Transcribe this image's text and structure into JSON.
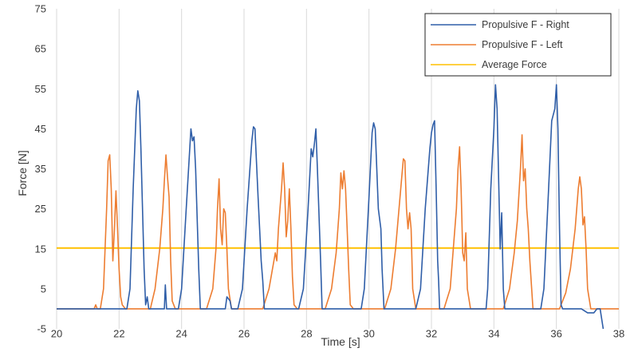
{
  "chart_data": {
    "type": "line",
    "title": "",
    "xlabel": "Time [s]",
    "ylabel": "Force [N]",
    "xlim": [
      20,
      38
    ],
    "ylim": [
      -5,
      75
    ],
    "xticks": [
      20,
      22,
      24,
      26,
      28,
      30,
      32,
      34,
      36,
      38
    ],
    "yticks": [
      -5,
      5,
      15,
      25,
      35,
      45,
      55,
      65,
      75
    ],
    "grid": "vertical",
    "legend": "top-right",
    "series": [
      {
        "name": "Propulsive F - Right",
        "color": "#2f5ea8",
        "points": [
          [
            20.0,
            0
          ],
          [
            22.25,
            0
          ],
          [
            22.35,
            5
          ],
          [
            22.45,
            30
          ],
          [
            22.55,
            50
          ],
          [
            22.6,
            54.5
          ],
          [
            22.65,
            52
          ],
          [
            22.7,
            40
          ],
          [
            22.8,
            10
          ],
          [
            22.85,
            1
          ],
          [
            22.9,
            3
          ],
          [
            22.95,
            0
          ],
          [
            23.45,
            0
          ],
          [
            23.48,
            6
          ],
          [
            23.52,
            0
          ],
          [
            23.9,
            0
          ],
          [
            24.0,
            5
          ],
          [
            24.15,
            25
          ],
          [
            24.3,
            45
          ],
          [
            24.35,
            42
          ],
          [
            24.4,
            43
          ],
          [
            24.45,
            35
          ],
          [
            24.55,
            10
          ],
          [
            24.6,
            0
          ],
          [
            25.4,
            0
          ],
          [
            25.45,
            3
          ],
          [
            25.55,
            2
          ],
          [
            25.6,
            0
          ],
          [
            25.8,
            0
          ],
          [
            25.95,
            5
          ],
          [
            26.1,
            25
          ],
          [
            26.25,
            42
          ],
          [
            26.3,
            45.5
          ],
          [
            26.35,
            45
          ],
          [
            26.45,
            28
          ],
          [
            26.55,
            12
          ],
          [
            26.6,
            7
          ],
          [
            26.65,
            0
          ],
          [
            27.75,
            0
          ],
          [
            27.9,
            5
          ],
          [
            28.05,
            25
          ],
          [
            28.15,
            40
          ],
          [
            28.2,
            38
          ],
          [
            28.25,
            41
          ],
          [
            28.3,
            45
          ],
          [
            28.35,
            35
          ],
          [
            28.45,
            12
          ],
          [
            28.5,
            0
          ],
          [
            29.75,
            0
          ],
          [
            29.85,
            5
          ],
          [
            30.0,
            28
          ],
          [
            30.1,
            44
          ],
          [
            30.15,
            46.5
          ],
          [
            30.2,
            45
          ],
          [
            30.3,
            25
          ],
          [
            30.38,
            20
          ],
          [
            30.42,
            10
          ],
          [
            30.48,
            0
          ],
          [
            31.5,
            0
          ],
          [
            31.65,
            5
          ],
          [
            31.8,
            25
          ],
          [
            31.95,
            40
          ],
          [
            32.0,
            44
          ],
          [
            32.05,
            46
          ],
          [
            32.1,
            47
          ],
          [
            32.15,
            30
          ],
          [
            32.2,
            12
          ],
          [
            32.23,
            7
          ],
          [
            32.26,
            0
          ],
          [
            33.75,
            0
          ],
          [
            33.8,
            5
          ],
          [
            33.9,
            30
          ],
          [
            34.0,
            45
          ],
          [
            34.05,
            56
          ],
          [
            34.1,
            50
          ],
          [
            34.2,
            15
          ],
          [
            34.25,
            24
          ],
          [
            34.3,
            5
          ],
          [
            34.35,
            0
          ],
          [
            35.5,
            0
          ],
          [
            35.6,
            5
          ],
          [
            35.75,
            30
          ],
          [
            35.85,
            47
          ],
          [
            35.95,
            50
          ],
          [
            36.0,
            56
          ],
          [
            36.05,
            45
          ],
          [
            36.1,
            20
          ],
          [
            36.15,
            1
          ],
          [
            36.2,
            0
          ],
          [
            36.8,
            0
          ],
          [
            37.0,
            -1
          ],
          [
            37.2,
            -1
          ],
          [
            37.3,
            0
          ],
          [
            37.4,
            0
          ],
          [
            37.5,
            -5
          ]
        ]
      },
      {
        "name": "Propulsive F - Left",
        "color": "#ed7d31",
        "points": [
          [
            20.0,
            0
          ],
          [
            21.2,
            0
          ],
          [
            21.25,
            1
          ],
          [
            21.3,
            0
          ],
          [
            21.4,
            0
          ],
          [
            21.5,
            5
          ],
          [
            21.6,
            25
          ],
          [
            21.65,
            37
          ],
          [
            21.7,
            38.5
          ],
          [
            21.75,
            30
          ],
          [
            21.8,
            12
          ],
          [
            21.85,
            20
          ],
          [
            21.9,
            29.5
          ],
          [
            21.95,
            20
          ],
          [
            22.0,
            10
          ],
          [
            22.05,
            3
          ],
          [
            22.1,
            1
          ],
          [
            22.2,
            0
          ],
          [
            23.0,
            0
          ],
          [
            23.15,
            5
          ],
          [
            23.3,
            15
          ],
          [
            23.4,
            25
          ],
          [
            23.45,
            32
          ],
          [
            23.5,
            38.5
          ],
          [
            23.55,
            33
          ],
          [
            23.6,
            28
          ],
          [
            23.65,
            12
          ],
          [
            23.7,
            2
          ],
          [
            23.8,
            0
          ],
          [
            24.8,
            0
          ],
          [
            25.0,
            5
          ],
          [
            25.1,
            15
          ],
          [
            25.15,
            25
          ],
          [
            25.2,
            32.5
          ],
          [
            25.25,
            20
          ],
          [
            25.3,
            16
          ],
          [
            25.35,
            25
          ],
          [
            25.4,
            24
          ],
          [
            25.45,
            15
          ],
          [
            25.5,
            5
          ],
          [
            25.6,
            0
          ],
          [
            26.6,
            0
          ],
          [
            26.8,
            5
          ],
          [
            27.0,
            14
          ],
          [
            27.05,
            12
          ],
          [
            27.1,
            20
          ],
          [
            27.2,
            30
          ],
          [
            27.25,
            36.5
          ],
          [
            27.3,
            30
          ],
          [
            27.35,
            18
          ],
          [
            27.4,
            22
          ],
          [
            27.45,
            30
          ],
          [
            27.5,
            20
          ],
          [
            27.55,
            8
          ],
          [
            27.6,
            1
          ],
          [
            27.7,
            0
          ],
          [
            28.6,
            0
          ],
          [
            28.8,
            5
          ],
          [
            28.95,
            14
          ],
          [
            29.05,
            25
          ],
          [
            29.1,
            34
          ],
          [
            29.15,
            30
          ],
          [
            29.2,
            34.5
          ],
          [
            29.25,
            30
          ],
          [
            29.3,
            20
          ],
          [
            29.35,
            10
          ],
          [
            29.4,
            1
          ],
          [
            29.5,
            0
          ],
          [
            30.5,
            0
          ],
          [
            30.7,
            5
          ],
          [
            30.85,
            15
          ],
          [
            30.95,
            24
          ],
          [
            31.05,
            33
          ],
          [
            31.1,
            37.5
          ],
          [
            31.15,
            37
          ],
          [
            31.2,
            25
          ],
          [
            31.25,
            20
          ],
          [
            31.3,
            24
          ],
          [
            31.35,
            20
          ],
          [
            31.4,
            5
          ],
          [
            31.5,
            0
          ],
          [
            32.4,
            0
          ],
          [
            32.6,
            5
          ],
          [
            32.7,
            15
          ],
          [
            32.8,
            25
          ],
          [
            32.85,
            35
          ],
          [
            32.9,
            40.5
          ],
          [
            32.95,
            30
          ],
          [
            33.0,
            14
          ],
          [
            33.05,
            12
          ],
          [
            33.1,
            19
          ],
          [
            33.15,
            5
          ],
          [
            33.25,
            0
          ],
          [
            34.3,
            0
          ],
          [
            34.5,
            5
          ],
          [
            34.65,
            14
          ],
          [
            34.75,
            22
          ],
          [
            34.85,
            35
          ],
          [
            34.9,
            43.5
          ],
          [
            34.95,
            32
          ],
          [
            35.0,
            35
          ],
          [
            35.05,
            25
          ],
          [
            35.1,
            20
          ],
          [
            35.15,
            12
          ],
          [
            35.25,
            0
          ],
          [
            36.1,
            0
          ],
          [
            36.3,
            4
          ],
          [
            36.45,
            10
          ],
          [
            36.6,
            20
          ],
          [
            36.7,
            30
          ],
          [
            36.75,
            33
          ],
          [
            36.8,
            30
          ],
          [
            36.85,
            21
          ],
          [
            36.9,
            23
          ],
          [
            36.95,
            15
          ],
          [
            37.0,
            5
          ],
          [
            37.1,
            0
          ],
          [
            38.0,
            0
          ]
        ]
      },
      {
        "name": "Average Force",
        "color": "#ffc000",
        "points": [
          [
            20,
            15.2
          ],
          [
            38,
            15.2
          ]
        ]
      }
    ]
  }
}
